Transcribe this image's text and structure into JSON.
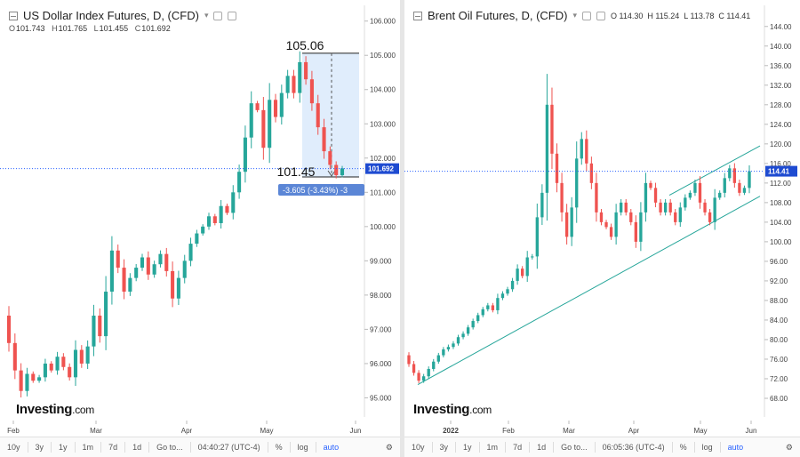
{
  "left": {
    "title": "US Dollar Index Futures, D, (CFD)",
    "ohlc": {
      "o_label": "O",
      "o": "101.743",
      "h_label": "H",
      "h": "101.765",
      "l_label": "L",
      "l": "101.455",
      "c_label": "C",
      "c": "101.692"
    },
    "brand": "Investing",
    "brand_suffix": ".com",
    "toolbar": {
      "items": [
        "10y",
        "3y",
        "1y",
        "1m",
        "7d",
        "1d",
        "Go to..."
      ],
      "time": "04:40:27 (UTC-4)",
      "pct": "%",
      "log": "log",
      "auto": "auto"
    },
    "measure": {
      "high": "105.06",
      "low": "101.45",
      "change": "-3.605 (-3.43%) -3"
    },
    "chart_data": {
      "type": "candlestick",
      "title": "US Dollar Index Futures, D, (CFD)",
      "ylim": [
        94.7,
        106.2
      ],
      "y_ticks": [
        "106.000",
        "105.000",
        "104.000",
        "103.000",
        "102.000",
        "101.000",
        "100.000",
        "99.000",
        "98.000",
        "97.000",
        "96.000",
        "95.000"
      ],
      "x_ticks": [
        "Feb",
        "Mar",
        "Apr",
        "May",
        "Jun"
      ],
      "last_price": "101.692",
      "series": [
        {
          "name": "",
          "values": [
            96.6,
            95.8,
            95.2,
            95.7,
            95.5,
            95.6,
            96.0,
            95.8,
            96.2,
            95.9,
            95.6,
            96.4,
            96.0,
            96.5,
            97.4,
            96.8,
            98.1,
            99.3,
            98.8,
            98.1,
            98.5,
            98.8,
            99.1,
            98.6,
            98.9,
            99.2,
            98.7,
            97.9,
            98.5,
            99.0,
            99.5,
            99.8,
            100.0,
            100.3,
            100.1,
            100.6,
            100.4,
            101.0,
            101.6,
            102.6,
            103.6,
            103.4,
            102.3,
            103.7,
            103.2,
            103.9,
            104.4,
            103.9,
            104.8,
            104.3,
            103.6,
            102.9,
            102.2,
            101.8,
            101.5,
            101.7
          ]
        }
      ]
    }
  },
  "right": {
    "title": "Brent Oil Futures, D, (CFD)",
    "ohlc": {
      "o_label": "O",
      "o": "114.30",
      "h_label": "H",
      "h": "115.24",
      "l_label": "L",
      "l": "113.78",
      "c_label": "C",
      "c": "114.41"
    },
    "brand": "Investing",
    "brand_suffix": ".com",
    "toolbar": {
      "items": [
        "10y",
        "3y",
        "1y",
        "1m",
        "7d",
        "1d",
        "Go to..."
      ],
      "time": "06:05:36 (UTC-4)",
      "pct": "%",
      "log": "log",
      "auto": "auto"
    },
    "chart_data": {
      "type": "candlestick",
      "title": "Brent Oil Futures, D, (CFD)",
      "ylim": [
        66.0,
        146.5
      ],
      "y_ticks": [
        "144.00",
        "140.00",
        "136.00",
        "132.00",
        "128.00",
        "124.00",
        "120.00",
        "116.00",
        "112.00",
        "108.00",
        "104.00",
        "100.00",
        "96.00",
        "92.00",
        "88.00",
        "84.00",
        "80.00",
        "76.00",
        "72.00",
        "68.00"
      ],
      "x_ticks": [
        "2022",
        "Feb",
        "Mar",
        "Apr",
        "May",
        "Jun"
      ],
      "last_price": "114.41",
      "series": [
        {
          "name": "",
          "values": [
            75.0,
            73.2,
            71.6,
            72.5,
            74.0,
            75.5,
            76.8,
            78.0,
            78.5,
            79.2,
            80.5,
            81.2,
            82.5,
            83.8,
            85.0,
            86.2,
            87.0,
            86.0,
            88.5,
            89.4,
            90.3,
            92.0,
            94.5,
            93.0,
            96.8,
            97.0,
            105,
            110,
            128,
            118,
            112,
            106,
            101,
            107,
            117,
            121,
            116,
            112,
            106,
            104,
            103,
            101,
            106,
            108,
            106,
            104,
            100,
            106,
            112,
            111,
            108,
            106,
            108,
            106,
            104,
            107,
            109,
            110,
            112,
            108,
            106,
            104,
            109,
            110,
            113,
            115,
            112,
            110,
            111,
            114.41
          ]
        }
      ]
    }
  }
}
